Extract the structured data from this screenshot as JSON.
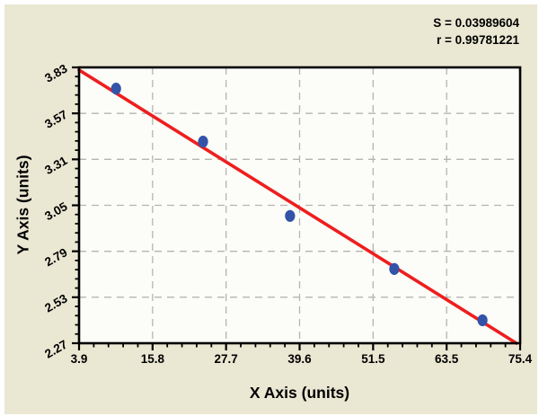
{
  "stats": {
    "s": "S = 0.03989604",
    "r": "r = 0.99781221"
  },
  "chart_data": {
    "type": "scatter",
    "title": "",
    "xlabel": "X Axis (units)",
    "ylabel": "Y Axis (units)",
    "xlim": [
      3.9,
      75.4
    ],
    "ylim": [
      2.27,
      3.83
    ],
    "x_tick_labels": [
      "3.9",
      "15.8",
      "27.7",
      "39.6",
      "51.5",
      "63.5",
      "75.4"
    ],
    "y_tick_labels": [
      "2.27",
      "2.53",
      "2.79",
      "3.05",
      "3.31",
      "3.57",
      "3.83"
    ],
    "minor_ticks_per_interval": 4,
    "grid": "dashed",
    "legend": "none",
    "points": [
      {
        "x": 9.9,
        "y": 3.71
      },
      {
        "x": 24.0,
        "y": 3.41
      },
      {
        "x": 38.1,
        "y": 2.99
      },
      {
        "x": 55.0,
        "y": 2.69
      },
      {
        "x": 69.3,
        "y": 2.4
      }
    ],
    "fit_line": {
      "x1": 3.9,
      "y1": 3.815,
      "x2": 74.8,
      "y2": 2.27
    },
    "stats_values": {
      "S": 0.03989604,
      "r": 0.99781221
    },
    "colors": {
      "background": "#eae7d3",
      "plot_bg": "#fcfcf8",
      "line": "#ee1e1e",
      "point": "#3353a8",
      "grid": "#b4b4b4",
      "axis": "#000000"
    }
  }
}
